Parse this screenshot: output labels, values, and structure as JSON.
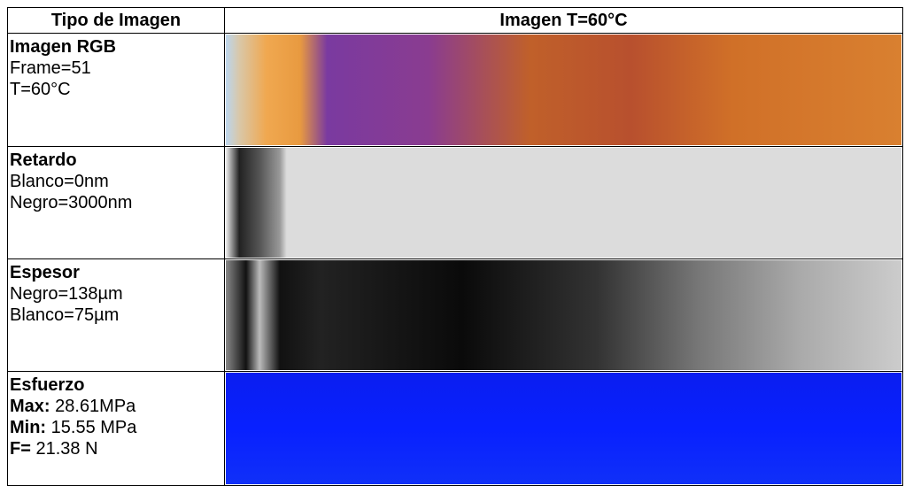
{
  "table": {
    "header": [
      "Tipo de Imagen",
      "Imagen T=60°C"
    ],
    "rows": [
      {
        "title": "Imagen RGB",
        "lines": [
          "Frame=51",
          "T=60°C"
        ]
      },
      {
        "title": "Retardo",
        "lines": [
          "Blanco=0nm",
          "Negro=3000nm"
        ]
      },
      {
        "title": "Espesor",
        "lines": [
          "Negro=138µm",
          "Blanco=75µm"
        ]
      },
      {
        "title": "Esfuerzo",
        "lines": [
          {
            "label": "Max:",
            "value": " 28.61MPa"
          },
          {
            "label": "Min:",
            "value": " 15.55 MPa"
          },
          {
            "label": "F=",
            "value": " 21.38 N"
          }
        ]
      }
    ]
  }
}
